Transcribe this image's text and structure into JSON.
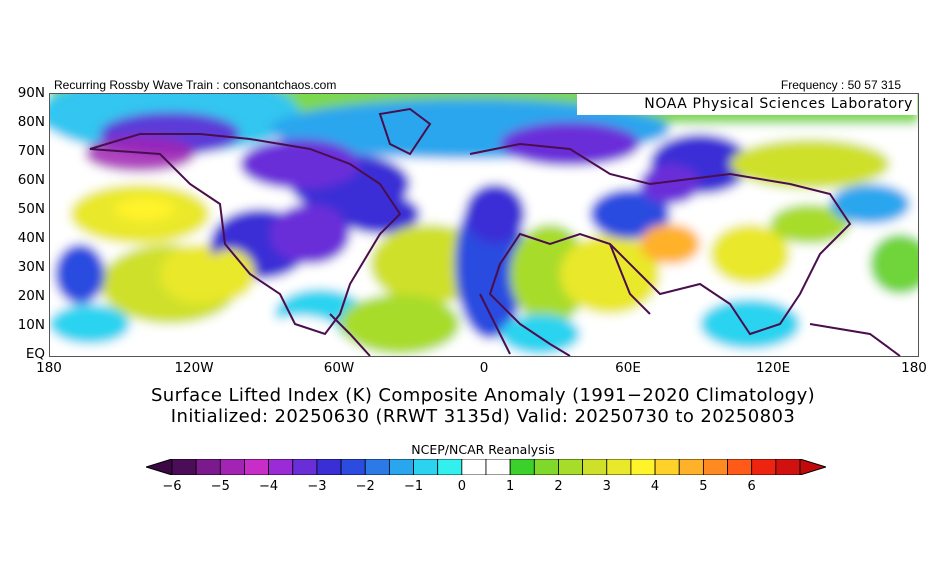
{
  "header": {
    "left": "Recurring Rossby Wave Train : consonantchaos.com",
    "right": "Frequency : 50 57 315"
  },
  "map": {
    "watermark": "NOAA Physical Sciences Laboratory",
    "lat_labels": [
      "90N",
      "80N",
      "70N",
      "60N",
      "50N",
      "40N",
      "30N",
      "20N",
      "10N",
      "EQ"
    ],
    "lon_labels": [
      "180",
      "120W",
      "60W",
      "0",
      "60E",
      "120E",
      "180"
    ],
    "projection": "cylindrical equidistant, 180W-180E, EQ-90N"
  },
  "title": {
    "line1": "Surface Lifted Index (K) Composite Anomaly (1991−2020 Climatology)",
    "line2": "Initialized: 20250630 (RRWT 3135d) Valid: 20250730 to 20250803"
  },
  "colorbar": {
    "title": "NCEP/NCAR Reanalysis",
    "tick_labels": [
      "−6",
      "−5",
      "−4",
      "−3",
      "−2",
      "−1",
      "0",
      "1",
      "2",
      "3",
      "4",
      "5",
      "6"
    ],
    "colors": [
      "#4b0d57",
      "#7b1a8c",
      "#a223b4",
      "#c82dc8",
      "#9a2bd6",
      "#6a2ed9",
      "#3a2fd6",
      "#2c4be0",
      "#2c7ae8",
      "#2aa6ee",
      "#2cd3f0",
      "#32f0ee",
      "#ffffff",
      "#ffffff",
      "#3cd02a",
      "#7fd82a",
      "#a8dc2a",
      "#cfe02a",
      "#e9e82a",
      "#fff32a",
      "#ffd22a",
      "#ffb12a",
      "#ff8a22",
      "#ff5a18",
      "#ee2410",
      "#d11010"
    ],
    "under_color": "#3b0845",
    "over_color": "#c20a0a"
  }
}
